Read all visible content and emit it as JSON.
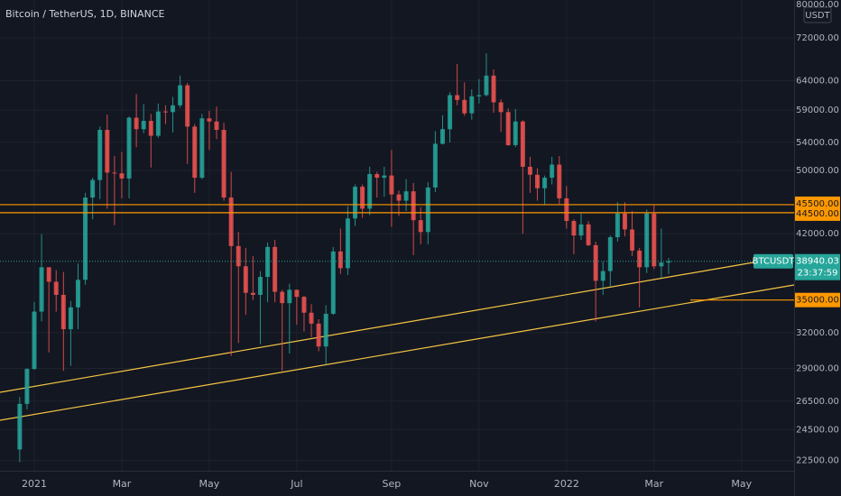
{
  "chart_data": {
    "type": "candlestick",
    "title": "Bitcoin / TetherUS, 1D, BINANCE",
    "currency": "USDT",
    "log_scale": true,
    "grid": true,
    "up_color": "#26a69a",
    "down_color": "#ef5350",
    "ylim": [
      21880,
      79906
    ],
    "yticks": [
      {
        "value": 80000,
        "label": "80000.00"
      },
      {
        "value": 72000,
        "label": "72000.00"
      },
      {
        "value": 64000,
        "label": "64000.00"
      },
      {
        "value": 59000,
        "label": "59000.00"
      },
      {
        "value": 54000,
        "label": "54000.00"
      },
      {
        "value": 50000,
        "label": "50000.00"
      },
      {
        "value": 42000,
        "label": "42000.00"
      },
      {
        "value": 32000,
        "label": "32000.00"
      },
      {
        "value": 29000,
        "label": "29000.00"
      },
      {
        "value": 26500,
        "label": "26500.00"
      },
      {
        "value": 24500,
        "label": "24500.00"
      },
      {
        "value": 22500,
        "label": "22500.00"
      }
    ],
    "categories": [
      null,
      null,
      "2021",
      null,
      null,
      null,
      null,
      null,
      null,
      null,
      null,
      null,
      null,
      null,
      "Mar",
      null,
      null,
      null,
      null,
      null,
      null,
      null,
      null,
      null,
      null,
      null,
      "May",
      null,
      null,
      null,
      null,
      null,
      null,
      null,
      null,
      null,
      null,
      null,
      "Jul",
      null,
      null,
      null,
      null,
      null,
      null,
      null,
      null,
      null,
      null,
      null,
      null,
      "Sep",
      null,
      null,
      null,
      null,
      null,
      null,
      null,
      null,
      null,
      null,
      null,
      "Nov",
      null,
      null,
      null,
      null,
      null,
      null,
      null,
      null,
      null,
      null,
      null,
      "2022",
      null,
      null,
      null,
      null,
      null,
      null,
      null,
      null,
      null,
      null,
      null,
      "Mar",
      null,
      null,
      null,
      null,
      null,
      null,
      null,
      null,
      null,
      null,
      null,
      "May",
      null,
      null,
      null,
      null,
      null,
      null,
      null
    ],
    "open": [
      23200,
      26300,
      28950,
      33900,
      38300,
      36800,
      35500,
      32300,
      34300,
      37000,
      46400,
      48700,
      55900,
      49700,
      49600,
      48900,
      57800,
      56000,
      57300,
      55000,
      58800,
      58700,
      59800,
      63200,
      56400,
      49000,
      57700,
      57200,
      55900,
      46400,
      40600,
      38400,
      35700,
      35500,
      37300,
      40500,
      35800,
      34700,
      36000,
      35300,
      33800,
      32800,
      30800,
      33700,
      40000,
      38200,
      43800,
      47800,
      45000,
      49500,
      49000,
      49300,
      46800,
      46000,
      47200,
      43600,
      42200,
      47700,
      53800,
      56000,
      61500,
      60700,
      58500,
      61300,
      61500,
      64900,
      60300,
      58700,
      53600,
      57200,
      50500,
      49400,
      47600,
      49000,
      50800,
      46300,
      43500,
      41800,
      43100,
      40700,
      36900,
      37900,
      41600,
      44400,
      42500,
      40100,
      38300,
      44400,
      38400,
      38800,
      null,
      null,
      null,
      null,
      null,
      null,
      null,
      null,
      null,
      null,
      null,
      null,
      null,
      null,
      null,
      null,
      null
    ],
    "high": [
      26800,
      29000,
      34800,
      41950,
      38300,
      38000,
      37800,
      34900,
      38700,
      47000,
      49000,
      56400,
      58300,
      52000,
      52600,
      58000,
      61700,
      60000,
      58400,
      60100,
      59800,
      61200,
      64900,
      63600,
      56800,
      58400,
      58900,
      59600,
      57000,
      49800,
      42200,
      40400,
      39500,
      37900,
      41000,
      41300,
      36000,
      36600,
      36000,
      35400,
      34600,
      33200,
      34500,
      40500,
      42600,
      45300,
      48100,
      48100,
      50500,
      49800,
      50500,
      52900,
      47300,
      48800,
      48300,
      45200,
      48400,
      55700,
      58200,
      62000,
      67000,
      63700,
      62500,
      64300,
      69000,
      66000,
      60800,
      59300,
      59200,
      57400,
      51900,
      50300,
      49300,
      51900,
      52000,
      47900,
      43700,
      44400,
      43500,
      41100,
      38900,
      41800,
      45800,
      45800,
      44700,
      40400,
      44900,
      45400,
      42600,
      39300,
      null,
      null,
      null,
      null,
      null,
      null,
      null,
      null,
      null,
      null,
      null,
      null,
      null,
      null,
      null,
      null,
      null
    ],
    "low": [
      22400,
      25900,
      28900,
      33000,
      30300,
      33900,
      28800,
      29200,
      32300,
      36500,
      43700,
      46200,
      45000,
      43000,
      46300,
      46300,
      53300,
      55400,
      50400,
      54700,
      56800,
      55500,
      59400,
      50900,
      47000,
      48800,
      52900,
      54500,
      46000,
      30000,
      31100,
      33600,
      35000,
      31000,
      34800,
      34800,
      28800,
      30200,
      32700,
      32100,
      31600,
      30400,
      29300,
      33600,
      37600,
      37500,
      42900,
      43900,
      44200,
      46400,
      46500,
      42800,
      44100,
      44700,
      39600,
      40800,
      40800,
      47100,
      53700,
      54000,
      59800,
      58100,
      57500,
      60100,
      61300,
      58600,
      55600,
      53500,
      53300,
      42000,
      47000,
      46000,
      45500,
      48100,
      45600,
      42600,
      39700,
      41300,
      40600,
      33000,
      35500,
      36300,
      41100,
      41700,
      39500,
      34300,
      37700,
      38100,
      37200,
      37600,
      null,
      null,
      null,
      null,
      null,
      null,
      null,
      null,
      null,
      null,
      null,
      null,
      null,
      null,
      null,
      null,
      null
    ],
    "close": [
      26300,
      28950,
      33900,
      38300,
      36800,
      35500,
      32300,
      34300,
      37000,
      46400,
      48700,
      55900,
      49700,
      49600,
      48900,
      57800,
      56000,
      57300,
      55000,
      58800,
      58700,
      59800,
      63200,
      56400,
      49000,
      57700,
      57200,
      55900,
      46400,
      40600,
      38400,
      35700,
      35500,
      37300,
      40500,
      35800,
      34700,
      36000,
      35300,
      33800,
      32800,
      30800,
      33700,
      40000,
      38200,
      43800,
      47800,
      45000,
      49500,
      49000,
      49300,
      46800,
      46000,
      47200,
      43600,
      42200,
      47700,
      53800,
      56000,
      61500,
      60700,
      58500,
      61300,
      61500,
      64900,
      60300,
      58700,
      53600,
      57200,
      50500,
      49400,
      47600,
      49000,
      50800,
      46300,
      43500,
      41800,
      43100,
      40700,
      36900,
      37900,
      41600,
      44400,
      42500,
      40100,
      38300,
      44400,
      38400,
      38800,
      38940.03,
      null,
      null,
      null,
      null,
      null,
      null,
      null,
      null,
      null,
      null,
      null,
      null,
      null,
      null,
      null,
      null,
      null
    ],
    "levels": [
      {
        "value": 45500,
        "label": "45500.00"
      },
      {
        "value": 44500,
        "label": "44500.00"
      },
      {
        "value": 35000,
        "label": "35000.00"
      }
    ],
    "level_color": "#ff9800",
    "last_price": {
      "symbol": "BTCUSDT",
      "countdown": "23:37:59",
      "color": "#26a69a"
    }
  }
}
